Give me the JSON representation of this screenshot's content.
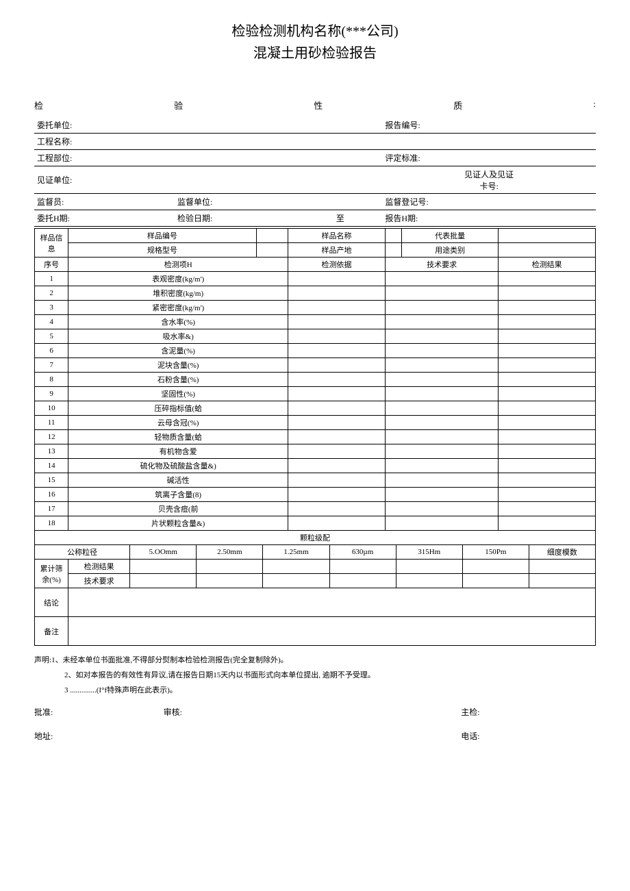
{
  "title1": "检验检测机构名称(***公司)",
  "title2": "混凝土用砂检验报告",
  "spread": [
    "检",
    "验",
    "性",
    "质",
    ":"
  ],
  "header_rows": [
    {
      "cells": [
        {
          "label": "委托单位:",
          "w": "62%"
        },
        {
          "label": "报告编号:",
          "w": "38%"
        }
      ]
    },
    {
      "cells": [
        {
          "label": "工程名称:",
          "w": "100%"
        }
      ]
    },
    {
      "cells": [
        {
          "label": "工程部位:",
          "w": "62%"
        },
        {
          "label": "评定标准:",
          "w": "38%"
        }
      ]
    },
    {
      "tall": true,
      "cells": [
        {
          "label": "见证单位:",
          "w": "62%"
        },
        {
          "label": "见证人及见证卡号:",
          "w": "38%",
          "center": true
        }
      ]
    },
    {
      "cells": [
        {
          "label": "监督员:",
          "w": "25%"
        },
        {
          "label": "监督单位:",
          "w": "37%"
        },
        {
          "label": "监督登记号:",
          "w": "38%"
        }
      ]
    },
    {
      "cells": [
        {
          "label": "委托H期:",
          "w": "25%"
        },
        {
          "label": "检验日期:",
          "w": "22%"
        },
        {
          "label": "至",
          "w": "15%",
          "center": true
        },
        {
          "label": "报告H期:",
          "w": "38%"
        }
      ]
    }
  ],
  "sample_info": {
    "row_label": "样品信息",
    "rows": [
      [
        "样品编号",
        "",
        "样品名称",
        "",
        "代表批量",
        ""
      ],
      [
        "规格型号",
        "",
        "样品产地",
        "",
        "用途类别",
        ""
      ]
    ]
  },
  "test_header": [
    "序号",
    "检测项H",
    "检测依据",
    "技术要求",
    "检测结果"
  ],
  "test_items": [
    {
      "n": "1",
      "name": "表观密度(kg/m')"
    },
    {
      "n": "2",
      "name": "堆积密度(kg/m)"
    },
    {
      "n": "3",
      "name": "紧密密度(kg/m')"
    },
    {
      "n": "4",
      "name": "含水率(%)"
    },
    {
      "n": "5",
      "name": "吸水率&)"
    },
    {
      "n": "6",
      "name": "含泥量(%)"
    },
    {
      "n": "7",
      "name": "泥块含量(%)"
    },
    {
      "n": "8",
      "name": "石粉含量(%)"
    },
    {
      "n": "9",
      "name": "坚固性(%)"
    },
    {
      "n": "10",
      "name": "压碎指标值(蛤"
    },
    {
      "n": "11",
      "name": "云母含冠(%)"
    },
    {
      "n": "12",
      "name": "轻物质含量(蛤"
    },
    {
      "n": "13",
      "name": "有机物含爱"
    },
    {
      "n": "14",
      "name": "硫化物及硫酸盐含量&)"
    },
    {
      "n": "15",
      "name": "碱活性"
    },
    {
      "n": "16",
      "name": "筑离子含量(8)"
    },
    {
      "n": "17",
      "name": "贝壳含痘(前"
    },
    {
      "n": "18",
      "name": "片状颗粒含量&)"
    }
  ],
  "grading_title": "颗粒级配",
  "grading_header": [
    "公称粒径",
    "5.OOmm",
    "2.50mm",
    "1.25mm",
    "630µm",
    "315Hm",
    "150Pm",
    "细度模数"
  ],
  "grading_rowlabel": "累计筛余(%)",
  "grading_sublabels": [
    "检测结果",
    "技术要求"
  ],
  "conclusion_label": "结论",
  "remarks_label": "备注",
  "notes_lead": "声明:",
  "notes": [
    "1、未经本单位书面批准,不得部分熨制本检验检测报告(完全复制除外)。",
    "2、如对本报告的有效性有异议,请在报告日期15天内以书面形式向本单位提出, 逾期不予受理。",
    "3 ..............(I°f特殊声明在此表示)。"
  ],
  "sig1": [
    "批准:",
    "审核:",
    "主检:"
  ],
  "sig2": [
    "地址:",
    "电话:"
  ]
}
